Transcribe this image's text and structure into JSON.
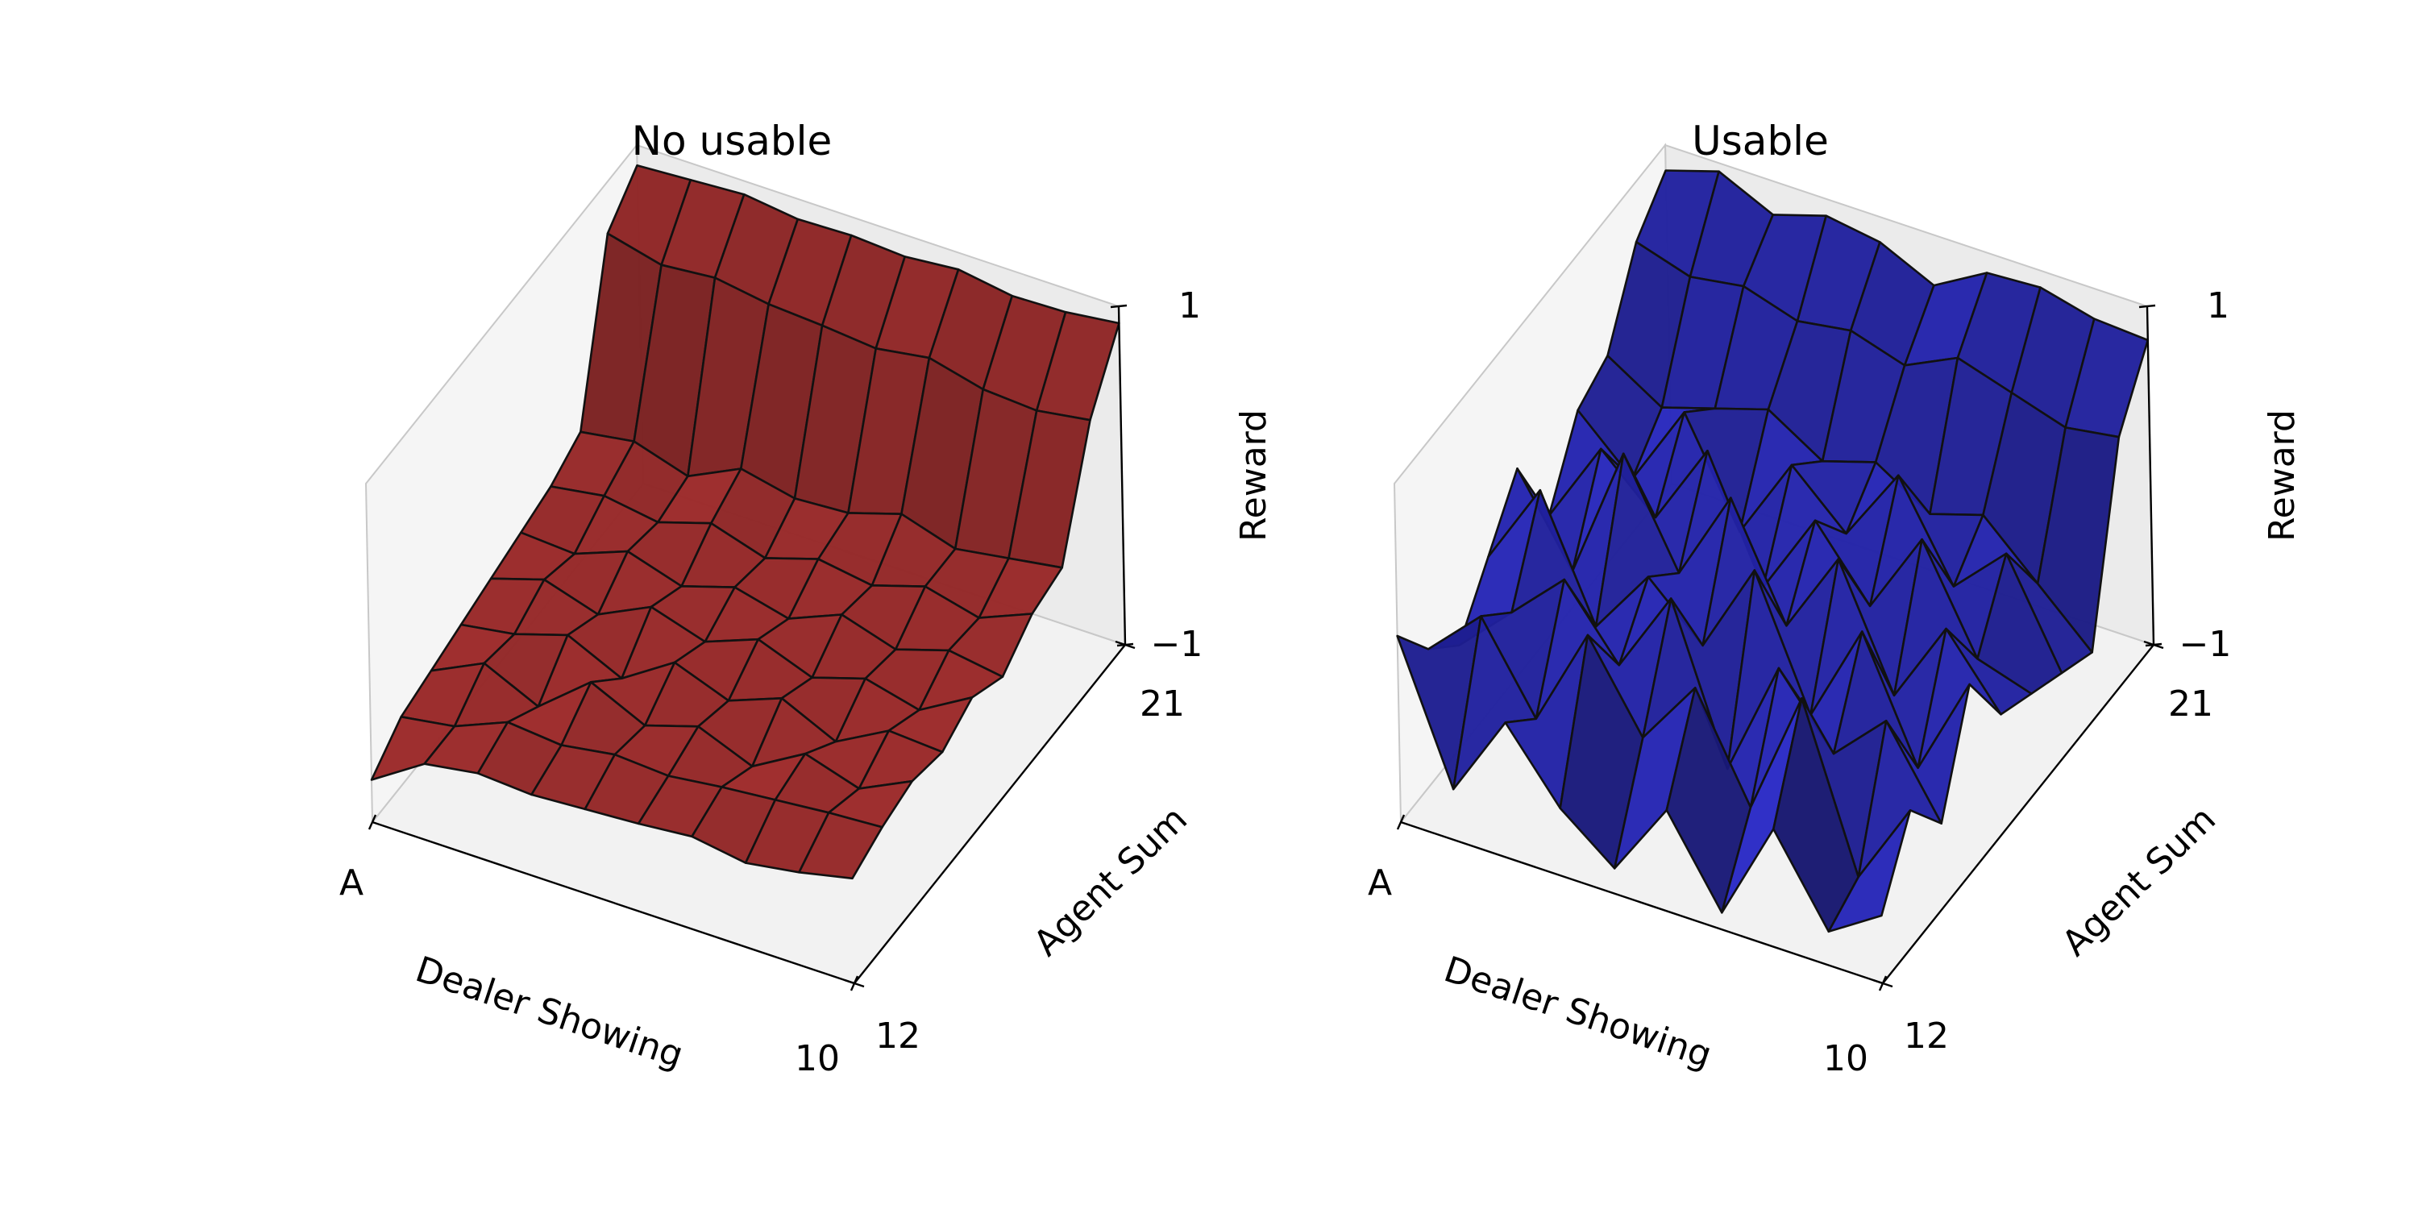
{
  "chart_data": [
    {
      "type": "surface3d",
      "title": "No usable",
      "xlabel": "Dealer Showing",
      "ylabel": "Agent Sum",
      "zlabel": "Reward",
      "x_tick_labels": [
        "A",
        "10"
      ],
      "y_tick_labels": [
        "12",
        "21"
      ],
      "z_tick_labels": [
        "−1",
        "1"
      ],
      "x": [
        1,
        2,
        3,
        4,
        5,
        6,
        7,
        8,
        9,
        10
      ],
      "y": [
        12,
        13,
        14,
        15,
        16,
        17,
        18,
        19,
        20,
        21
      ],
      "zlim": [
        -1,
        1
      ],
      "color": "#a32a2a",
      "z": [
        [
          -0.75,
          -0.55,
          -0.5,
          -0.52,
          -0.5,
          -0.48,
          -0.45,
          -0.5,
          -0.45,
          -0.38
        ],
        [
          -0.6,
          -0.55,
          -0.42,
          -0.45,
          -0.4,
          -0.42,
          -0.38,
          -0.35,
          -0.32,
          -0.3
        ],
        [
          -0.55,
          -0.4,
          -0.55,
          -0.3,
          -0.45,
          -0.35,
          -0.48,
          -0.3,
          -0.4,
          -0.25
        ],
        [
          -0.5,
          -0.45,
          -0.35,
          -0.5,
          -0.3,
          -0.42,
          -0.3,
          -0.45,
          -0.28,
          -0.3
        ],
        [
          -0.45,
          -0.35,
          -0.45,
          -0.3,
          -0.4,
          -0.28,
          -0.4,
          -0.3,
          -0.38,
          -0.2
        ],
        [
          -0.4,
          -0.42,
          -0.3,
          -0.4,
          -0.3,
          -0.38,
          -0.25,
          -0.35,
          -0.25,
          -0.3
        ],
        [
          -0.35,
          -0.3,
          -0.35,
          -0.25,
          -0.35,
          -0.25,
          -0.3,
          -0.2,
          -0.28,
          -0.15
        ],
        [
          -0.25,
          -0.2,
          -0.3,
          -0.15,
          -0.22,
          -0.2,
          -0.1,
          -0.2,
          -0.15,
          -0.1
        ],
        [
          0.7,
          0.62,
          0.65,
          0.6,
          0.58,
          0.55,
          0.6,
          0.52,
          0.5,
          0.55
        ],
        [
          0.88,
          0.9,
          0.92,
          0.88,
          0.89,
          0.87,
          0.9,
          0.85,
          0.86,
          0.9
        ]
      ]
    },
    {
      "type": "surface3d",
      "title": "Usable",
      "xlabel": "Dealer Showing",
      "ylabel": "Agent Sum",
      "zlabel": "Reward",
      "x_tick_labels": [
        "A",
        "10"
      ],
      "y_tick_labels": [
        "12",
        "21"
      ],
      "z_tick_labels": [
        "−1",
        "1"
      ],
      "x": [
        1,
        2,
        3,
        4,
        5,
        6,
        7,
        8,
        9,
        10
      ],
      "y": [
        12,
        13,
        14,
        15,
        16,
        17,
        18,
        19,
        20,
        21
      ],
      "zlim": [
        -1,
        1
      ],
      "color": "#2626b8",
      "z": [
        [
          0.1,
          -0.7,
          -0.2,
          -0.6,
          -0.85,
          -0.4,
          -0.9,
          -0.3,
          -0.8,
          -0.6
        ],
        [
          -0.2,
          0.1,
          -0.4,
          0.2,
          -0.3,
          0.1,
          -0.5,
          0.25,
          -0.7,
          -0.2
        ],
        [
          -0.4,
          -0.1,
          0.2,
          -0.2,
          0.3,
          -0.6,
          0.1,
          -0.3,
          0.0,
          -0.5
        ],
        [
          -0.1,
          0.4,
          -0.3,
          0.1,
          -0.2,
          0.35,
          -0.4,
          0.2,
          -0.5,
          0.1
        ],
        [
          0.2,
          -0.3,
          0.5,
          -0.1,
          0.45,
          -0.2,
          0.3,
          -0.4,
          0.1,
          -0.3
        ],
        [
          -0.3,
          0.2,
          -0.1,
          0.4,
          -0.3,
          0.2,
          -0.2,
          0.3,
          -0.3,
          -0.4
        ],
        [
          0.1,
          -0.2,
          0.3,
          -0.3,
          0.2,
          -0.1,
          0.35,
          -0.2,
          0.1,
          -0.5
        ],
        [
          0.2,
          0.0,
          0.1,
          0.2,
          0.0,
          0.1,
          -0.1,
          0.0,
          -0.3,
          -0.6
        ],
        [
          0.65,
          0.55,
          0.6,
          0.5,
          0.55,
          0.45,
          0.6,
          0.5,
          0.4,
          0.45
        ],
        [
          0.85,
          0.95,
          0.8,
          0.9,
          0.85,
          0.7,
          0.88,
          0.9,
          0.82,
          0.8
        ]
      ]
    }
  ]
}
